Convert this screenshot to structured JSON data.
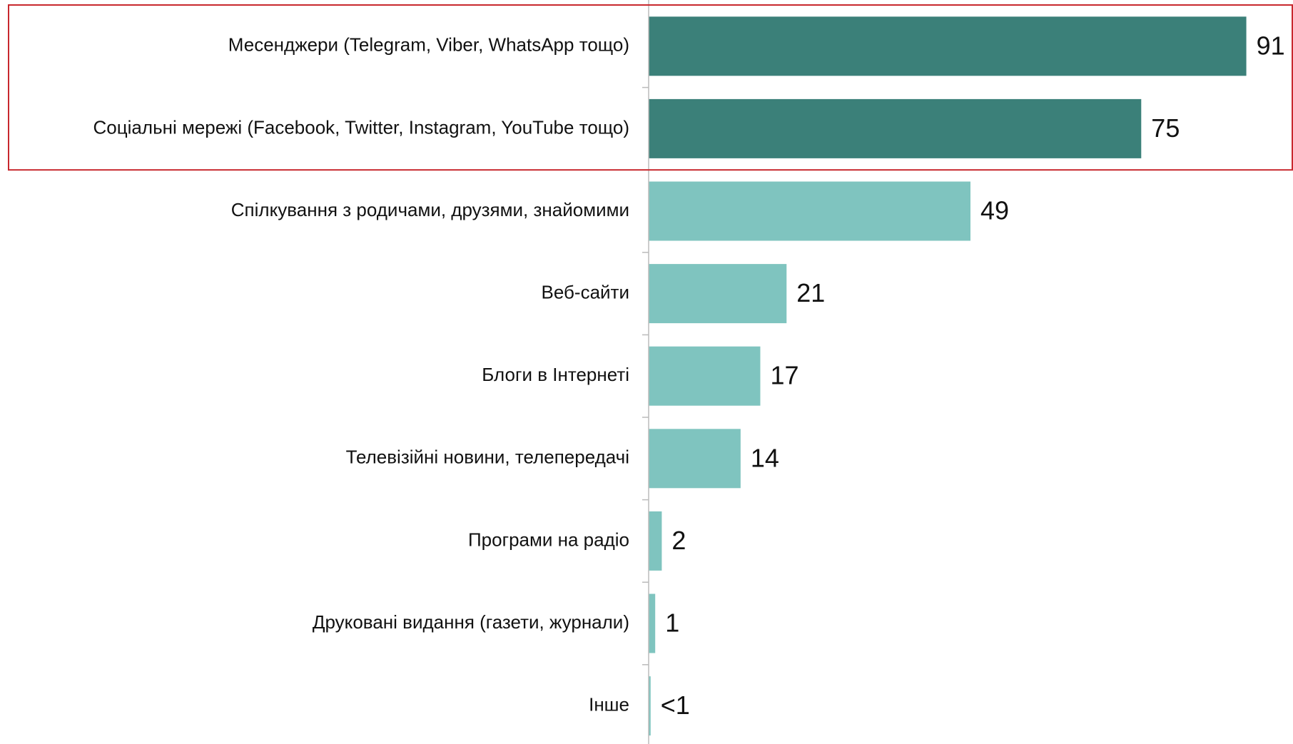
{
  "chart_data": {
    "type": "barh",
    "categories": [
      "Месенджери (Telegram, Viber, WhatsApp тощо)",
      "Соціальні мережі (Facebook, Twitter, Instagram, YouTube тощо)",
      "Спілкування з родичами, друзями, знайомими",
      "Веб-сайти",
      "Блоги в Інтернеті",
      "Телевізійні новини, телепередачі",
      "Програми на радіо",
      "Друковані видання (газети, журнали)",
      "Інше"
    ],
    "values": [
      91,
      75,
      49,
      21,
      17,
      14,
      2,
      1,
      0.3
    ],
    "value_labels": [
      "91",
      "75",
      "49",
      "21",
      "17",
      "14",
      "2",
      "1",
      "<1"
    ],
    "colors": [
      "#3b8079",
      "#3b8079",
      "#7fc4bf",
      "#7fc4bf",
      "#7fc4bf",
      "#7fc4bf",
      "#7fc4bf",
      "#7fc4bf",
      "#7fc4bf"
    ],
    "xlim": [
      0,
      98
    ]
  }
}
